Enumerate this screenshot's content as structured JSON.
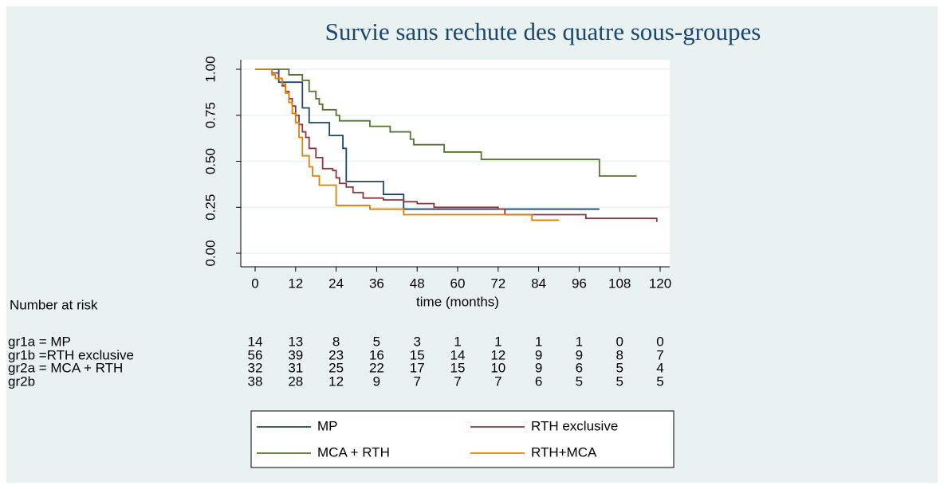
{
  "chart_data": {
    "type": "line",
    "step": "post",
    "title": "Survie sans rechute des quatre sous-groupes",
    "x_label": "time (months)",
    "xlim": [
      0,
      120
    ],
    "xticks": [
      0,
      12,
      24,
      36,
      48,
      60,
      72,
      84,
      96,
      108,
      120
    ],
    "ylim": [
      0,
      1
    ],
    "yticks": [
      {
        "value": 0,
        "label": "0.00"
      },
      {
        "value": 0.25,
        "label": "0.25"
      },
      {
        "value": 0.5,
        "label": "0.50"
      },
      {
        "value": 0.75,
        "label": "0.75"
      },
      {
        "value": 1,
        "label": "1.00"
      }
    ],
    "grid": true,
    "legend": "bottom",
    "series": [
      {
        "name": "MP",
        "color": "#1a476f",
        "x": [
          0,
          7,
          14,
          16,
          22,
          26,
          27,
          38,
          44,
          102
        ],
        "values": [
          1,
          0.93,
          0.79,
          0.71,
          0.64,
          0.57,
          0.39,
          0.32,
          0.24,
          0.24
        ]
      },
      {
        "name": "RTH exclusive",
        "color": "#90353b",
        "x": [
          0,
          5,
          7,
          8,
          9,
          10,
          11,
          12,
          13,
          14,
          15,
          16,
          18,
          20,
          23,
          24,
          25,
          27,
          29,
          32,
          38,
          44,
          48,
          53,
          72,
          74,
          98,
          118,
          119
        ],
        "values": [
          1,
          0.98,
          0.95,
          0.91,
          0.88,
          0.84,
          0.8,
          0.75,
          0.7,
          0.66,
          0.63,
          0.57,
          0.52,
          0.46,
          0.45,
          0.41,
          0.38,
          0.36,
          0.33,
          0.3,
          0.29,
          0.28,
          0.27,
          0.25,
          0.24,
          0.21,
          0.19,
          0.19,
          0.17
        ]
      },
      {
        "name": "MCA + RTH",
        "color": "#55752f",
        "x": [
          0,
          10,
          14,
          16,
          18,
          19,
          20,
          24,
          25,
          34,
          40,
          46,
          47,
          56,
          67,
          102,
          113
        ],
        "values": [
          1,
          0.97,
          0.94,
          0.88,
          0.84,
          0.81,
          0.78,
          0.75,
          0.72,
          0.69,
          0.66,
          0.62,
          0.59,
          0.55,
          0.51,
          0.42,
          0.42
        ]
      },
      {
        "name": "RTH+MCA",
        "color": "#e37e00",
        "x": [
          0,
          5,
          6,
          8,
          9,
          10,
          11,
          12,
          13,
          14,
          16,
          17,
          19,
          24,
          34,
          44,
          82,
          90
        ],
        "values": [
          1,
          0.97,
          0.95,
          0.92,
          0.87,
          0.82,
          0.76,
          0.71,
          0.63,
          0.53,
          0.47,
          0.42,
          0.37,
          0.26,
          0.24,
          0.21,
          0.18,
          0.18
        ]
      }
    ]
  },
  "risk_table": {
    "title": "Number at risk",
    "groups": [
      {
        "label": "gr1a = MP",
        "counts": [
          14,
          13,
          8,
          5,
          3,
          1,
          1,
          1,
          1,
          0,
          0
        ]
      },
      {
        "label": "gr1b =RTH exclusive",
        "counts": [
          56,
          39,
          23,
          16,
          15,
          14,
          12,
          9,
          9,
          8,
          7
        ]
      },
      {
        "label": "gr2a = MCA + RTH",
        "counts": [
          32,
          31,
          25,
          22,
          17,
          15,
          10,
          9,
          6,
          5,
          4
        ]
      },
      {
        "label": "gr2b",
        "counts": [
          38,
          28,
          12,
          9,
          7,
          7,
          7,
          6,
          5,
          5,
          5
        ]
      }
    ]
  }
}
